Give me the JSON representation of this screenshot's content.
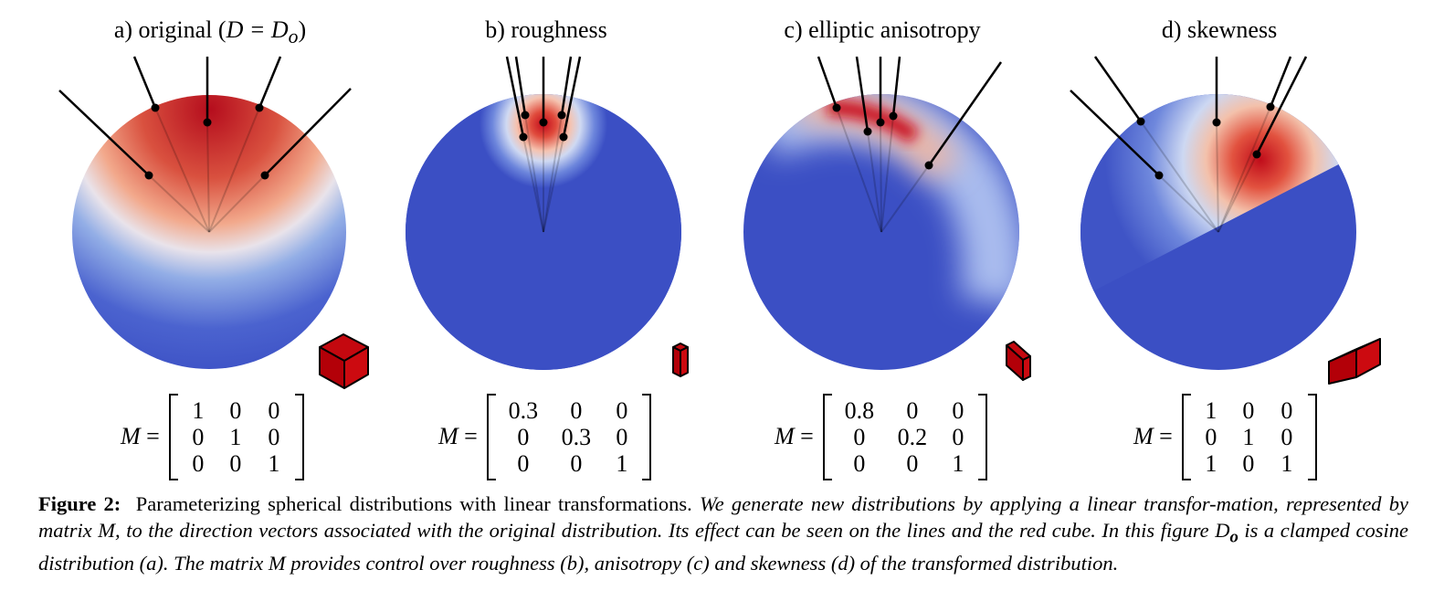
{
  "figure": {
    "panels": [
      {
        "id": "a",
        "title": "a) original (",
        "title_math": "D = D",
        "title_sub": "o",
        "title_close": ")",
        "matrix_lhs": "M",
        "matrix_eq": "=",
        "matrix": [
          [
            "1",
            "0",
            "0"
          ],
          [
            "0",
            "1",
            "0"
          ],
          [
            "0",
            "0",
            "1"
          ]
        ],
        "lobe_color": "#b70d1c",
        "base_color": "#3b4fc4"
      },
      {
        "id": "b",
        "title": "b) roughness",
        "matrix_lhs": "M",
        "matrix_eq": "=",
        "matrix": [
          [
            "0.3",
            "0",
            "0"
          ],
          [
            "0",
            "0.3",
            "0"
          ],
          [
            "0",
            "0",
            "1"
          ]
        ]
      },
      {
        "id": "c",
        "title": "c) elliptic anisotropy",
        "matrix_lhs": "M",
        "matrix_eq": "=",
        "matrix": [
          [
            "0.8",
            "0",
            "0"
          ],
          [
            "0",
            "0.2",
            "0"
          ],
          [
            "0",
            "0",
            "1"
          ]
        ]
      },
      {
        "id": "d",
        "title": "d) skewness",
        "matrix_lhs": "M",
        "matrix_eq": "=",
        "matrix": [
          [
            "1",
            "0",
            "0"
          ],
          [
            "0",
            "1",
            "0"
          ],
          [
            "1",
            "0",
            "1"
          ]
        ]
      }
    ],
    "caption": {
      "label": "Figure 2:",
      "lead": "Parameterizing spherical distributions with linear transformations.",
      "body1": "We generate new distributions by applying a linear transfor-mation, represented by matrix ",
      "body1_math": "M",
      "body2": ", to the direction vectors associated with the original distribution. Its effect can be seen on the lines and the red cube. In this figure ",
      "body2_math": "D",
      "body2_sub": "o",
      "body3": " is a clamped cosine distribution (a). The matrix ",
      "body3_math": "M",
      "body4": " provides control over roughness (b), anisotropy (c) and skewness (d) of the transformed distribution."
    }
  }
}
